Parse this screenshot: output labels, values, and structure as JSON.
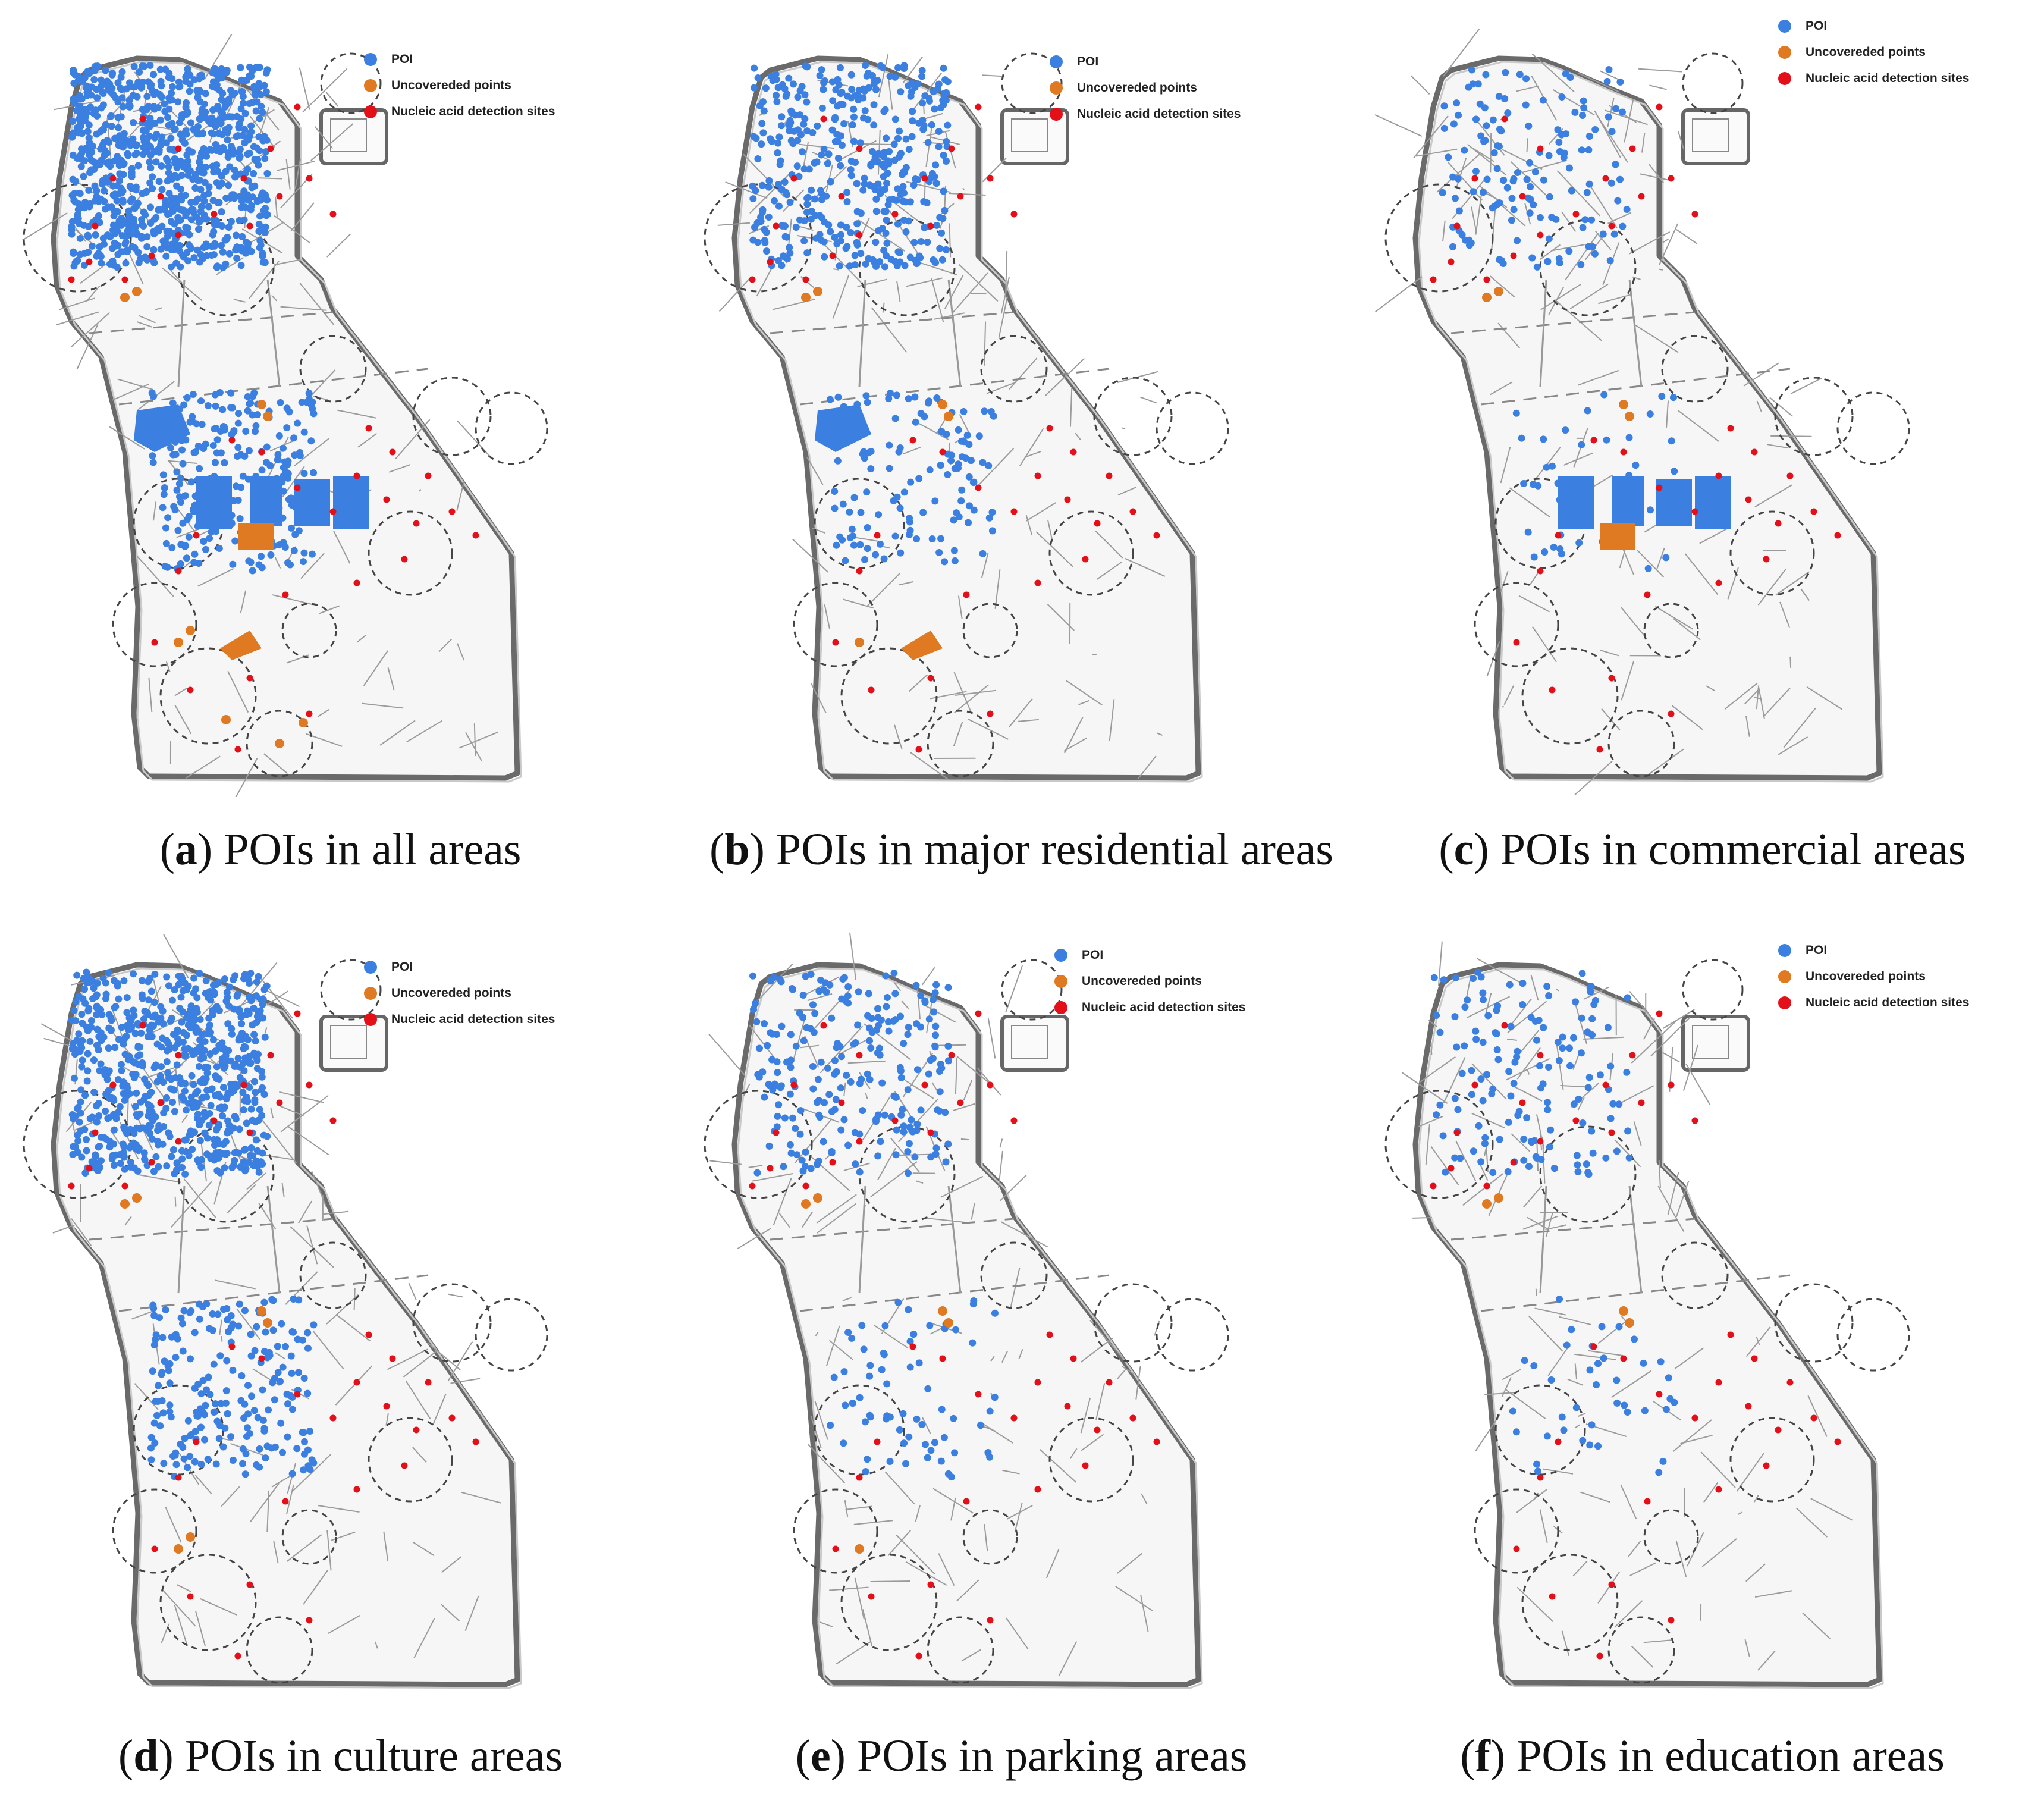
{
  "legend": {
    "poi": {
      "label": "POI",
      "color": "#3b7fe0"
    },
    "uncovered": {
      "label": "Uncovereded points",
      "color": "#e07a22"
    },
    "sites": {
      "label": "Nucleic acid detection sites",
      "color": "#e3101a"
    }
  },
  "panels": [
    {
      "letter": "a",
      "caption": "POIs in all areas",
      "poi_density": 1.0
    },
    {
      "letter": "b",
      "caption": "POIs in major residential areas",
      "poi_density": 0.45
    },
    {
      "letter": "c",
      "caption": "POIs in commercial areas",
      "poi_density": 0.15
    },
    {
      "letter": "d",
      "caption": "POIs in culture areas",
      "poi_density": 0.8
    },
    {
      "letter": "e",
      "caption": "POIs in parking areas",
      "poi_density": 0.25
    },
    {
      "letter": "f",
      "caption": "POIs in education areas",
      "poi_density": 0.15
    }
  ]
}
